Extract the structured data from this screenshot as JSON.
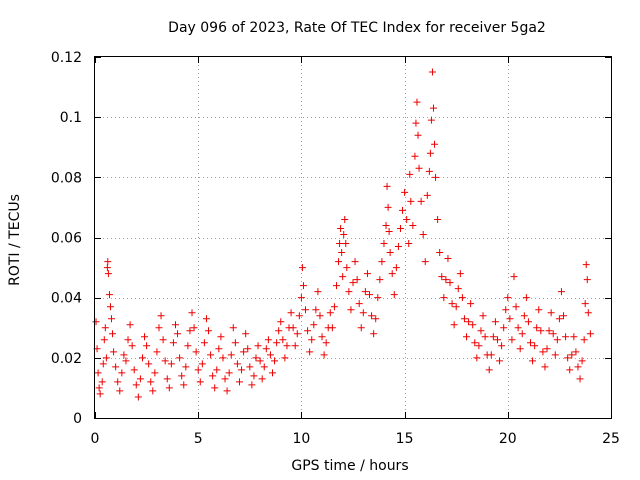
{
  "chart_data": {
    "type": "scatter",
    "title": "Day 096 of 2023, Rate Of TEC Index for receiver 5ga2",
    "xlabel": "GPS time / hours",
    "ylabel": "ROTI / TECUs",
    "xlim": [
      0,
      25
    ],
    "ylim": [
      0,
      0.12
    ],
    "xticks": [
      0,
      5,
      10,
      15,
      20,
      25
    ],
    "xtick_labels": [
      "0",
      "5",
      "10",
      "15",
      "20",
      "25"
    ],
    "yticks": [
      0,
      0.02,
      0.04,
      0.06,
      0.08,
      0.1,
      0.12
    ],
    "ytick_labels": [
      "0",
      "0.02",
      "0.04",
      "0.06",
      "0.08",
      "0.1",
      "0.12"
    ],
    "grid": true,
    "marker": "plus",
    "color": "#ee0000",
    "series": [
      {
        "name": "ROTI",
        "points": [
          [
            0.05,
            0.032
          ],
          [
            0.1,
            0.023
          ],
          [
            0.15,
            0.015
          ],
          [
            0.2,
            0.01
          ],
          [
            0.25,
            0.008
          ],
          [
            0.35,
            0.012
          ],
          [
            0.4,
            0.018
          ],
          [
            0.45,
            0.026
          ],
          [
            0.5,
            0.03
          ],
          [
            0.55,
            0.02
          ],
          [
            0.6,
            0.05
          ],
          [
            0.62,
            0.052
          ],
          [
            0.65,
            0.048
          ],
          [
            0.7,
            0.041
          ],
          [
            0.75,
            0.037
          ],
          [
            0.8,
            0.033
          ],
          [
            0.85,
            0.028
          ],
          [
            0.9,
            0.022
          ],
          [
            1.0,
            0.017
          ],
          [
            1.1,
            0.012
          ],
          [
            1.2,
            0.009
          ],
          [
            1.3,
            0.015
          ],
          [
            1.4,
            0.021
          ],
          [
            1.5,
            0.019
          ],
          [
            1.6,
            0.026
          ],
          [
            1.7,
            0.031
          ],
          [
            1.8,
            0.024
          ],
          [
            1.9,
            0.016
          ],
          [
            2.0,
            0.011
          ],
          [
            2.1,
            0.007
          ],
          [
            2.2,
            0.013
          ],
          [
            2.3,
            0.02
          ],
          [
            2.4,
            0.027
          ],
          [
            2.5,
            0.024
          ],
          [
            2.6,
            0.018
          ],
          [
            2.7,
            0.012
          ],
          [
            2.8,
            0.009
          ],
          [
            2.9,
            0.015
          ],
          [
            3.0,
            0.022
          ],
          [
            3.1,
            0.03
          ],
          [
            3.2,
            0.034
          ],
          [
            3.3,
            0.026
          ],
          [
            3.4,
            0.019
          ],
          [
            3.5,
            0.013
          ],
          [
            3.6,
            0.01
          ],
          [
            3.7,
            0.018
          ],
          [
            3.8,
            0.025
          ],
          [
            3.9,
            0.031
          ],
          [
            4.0,
            0.028
          ],
          [
            4.1,
            0.02
          ],
          [
            4.2,
            0.014
          ],
          [
            4.3,
            0.011
          ],
          [
            4.4,
            0.017
          ],
          [
            4.5,
            0.024
          ],
          [
            4.6,
            0.029
          ],
          [
            4.7,
            0.035
          ],
          [
            4.8,
            0.03
          ],
          [
            4.9,
            0.022
          ],
          [
            5.0,
            0.016
          ],
          [
            5.1,
            0.012
          ],
          [
            5.2,
            0.018
          ],
          [
            5.3,
            0.025
          ],
          [
            5.4,
            0.033
          ],
          [
            5.5,
            0.029
          ],
          [
            5.6,
            0.021
          ],
          [
            5.7,
            0.014
          ],
          [
            5.8,
            0.01
          ],
          [
            5.9,
            0.016
          ],
          [
            6.0,
            0.023
          ],
          [
            6.1,
            0.027
          ],
          [
            6.2,
            0.02
          ],
          [
            6.3,
            0.013
          ],
          [
            6.4,
            0.009
          ],
          [
            6.5,
            0.015
          ],
          [
            6.6,
            0.021
          ],
          [
            6.7,
            0.03
          ],
          [
            6.8,
            0.025
          ],
          [
            6.9,
            0.018
          ],
          [
            7.0,
            0.012
          ],
          [
            7.1,
            0.016
          ],
          [
            7.2,
            0.022
          ],
          [
            7.3,
            0.028
          ],
          [
            7.4,
            0.023
          ],
          [
            7.5,
            0.017
          ],
          [
            7.6,
            0.011
          ],
          [
            7.7,
            0.014
          ],
          [
            7.8,
            0.02
          ],
          [
            7.9,
            0.024
          ],
          [
            8.0,
            0.019
          ],
          [
            8.1,
            0.013
          ],
          [
            8.2,
            0.017
          ],
          [
            8.3,
            0.023
          ],
          [
            8.4,
            0.026
          ],
          [
            8.5,
            0.021
          ],
          [
            8.6,
            0.015
          ],
          [
            8.7,
            0.019
          ],
          [
            8.8,
            0.025
          ],
          [
            8.9,
            0.029
          ],
          [
            9.0,
            0.032
          ],
          [
            9.1,
            0.026
          ],
          [
            9.2,
            0.02
          ],
          [
            9.3,
            0.024
          ],
          [
            9.4,
            0.03
          ],
          [
            9.5,
            0.035
          ],
          [
            9.6,
            0.03
          ],
          [
            9.7,
            0.024
          ],
          [
            9.8,
            0.028
          ],
          [
            9.9,
            0.034
          ],
          [
            10.0,
            0.04
          ],
          [
            10.05,
            0.05
          ],
          [
            10.1,
            0.044
          ],
          [
            10.2,
            0.036
          ],
          [
            10.3,
            0.029
          ],
          [
            10.4,
            0.022
          ],
          [
            10.5,
            0.026
          ],
          [
            10.6,
            0.031
          ],
          [
            10.7,
            0.036
          ],
          [
            10.8,
            0.042
          ],
          [
            10.9,
            0.034
          ],
          [
            11.0,
            0.027
          ],
          [
            11.1,
            0.021
          ],
          [
            11.2,
            0.025
          ],
          [
            11.3,
            0.03
          ],
          [
            11.4,
            0.035
          ],
          [
            11.5,
            0.03
          ],
          [
            11.6,
            0.037
          ],
          [
            11.7,
            0.044
          ],
          [
            11.8,
            0.052
          ],
          [
            11.85,
            0.058
          ],
          [
            11.9,
            0.063
          ],
          [
            11.95,
            0.055
          ],
          [
            12.0,
            0.047
          ],
          [
            12.05,
            0.061
          ],
          [
            12.1,
            0.066
          ],
          [
            12.15,
            0.058
          ],
          [
            12.2,
            0.05
          ],
          [
            12.3,
            0.042
          ],
          [
            12.4,
            0.036
          ],
          [
            12.5,
            0.045
          ],
          [
            12.6,
            0.052
          ],
          [
            12.7,
            0.046
          ],
          [
            12.8,
            0.038
          ],
          [
            12.9,
            0.03
          ],
          [
            13.0,
            0.035
          ],
          [
            13.1,
            0.042
          ],
          [
            13.2,
            0.048
          ],
          [
            13.3,
            0.041
          ],
          [
            13.4,
            0.034
          ],
          [
            13.5,
            0.028
          ],
          [
            13.6,
            0.033
          ],
          [
            13.7,
            0.04
          ],
          [
            13.8,
            0.046
          ],
          [
            13.9,
            0.052
          ],
          [
            14.0,
            0.058
          ],
          [
            14.1,
            0.064
          ],
          [
            14.15,
            0.077
          ],
          [
            14.2,
            0.07
          ],
          [
            14.25,
            0.062
          ],
          [
            14.3,
            0.055
          ],
          [
            14.4,
            0.048
          ],
          [
            14.5,
            0.041
          ],
          [
            14.6,
            0.05
          ],
          [
            14.7,
            0.057
          ],
          [
            14.8,
            0.063
          ],
          [
            14.9,
            0.069
          ],
          [
            15.0,
            0.075
          ],
          [
            15.1,
            0.066
          ],
          [
            15.2,
            0.058
          ],
          [
            15.25,
            0.081
          ],
          [
            15.3,
            0.072
          ],
          [
            15.4,
            0.064
          ],
          [
            15.5,
            0.087
          ],
          [
            15.55,
            0.098
          ],
          [
            15.6,
            0.105
          ],
          [
            15.65,
            0.094
          ],
          [
            15.7,
            0.083
          ],
          [
            15.8,
            0.072
          ],
          [
            15.9,
            0.061
          ],
          [
            16.0,
            0.052
          ],
          [
            16.1,
            0.074
          ],
          [
            16.2,
            0.082
          ],
          [
            16.25,
            0.088
          ],
          [
            16.3,
            0.099
          ],
          [
            16.35,
            0.115
          ],
          [
            16.4,
            0.103
          ],
          [
            16.45,
            0.091
          ],
          [
            16.5,
            0.08
          ],
          [
            16.6,
            0.066
          ],
          [
            16.7,
            0.055
          ],
          [
            16.8,
            0.047
          ],
          [
            16.9,
            0.04
          ],
          [
            17.0,
            0.046
          ],
          [
            17.1,
            0.053
          ],
          [
            17.2,
            0.045
          ],
          [
            17.3,
            0.038
          ],
          [
            17.4,
            0.031
          ],
          [
            17.5,
            0.037
          ],
          [
            17.6,
            0.043
          ],
          [
            17.7,
            0.048
          ],
          [
            17.8,
            0.04
          ],
          [
            17.9,
            0.033
          ],
          [
            18.0,
            0.027
          ],
          [
            18.1,
            0.032
          ],
          [
            18.2,
            0.038
          ],
          [
            18.3,
            0.031
          ],
          [
            18.4,
            0.025
          ],
          [
            18.5,
            0.02
          ],
          [
            18.6,
            0.024
          ],
          [
            18.7,
            0.029
          ],
          [
            18.8,
            0.034
          ],
          [
            18.9,
            0.027
          ],
          [
            19.0,
            0.021
          ],
          [
            19.1,
            0.016
          ],
          [
            19.2,
            0.021
          ],
          [
            19.3,
            0.027
          ],
          [
            19.4,
            0.032
          ],
          [
            19.5,
            0.026
          ],
          [
            19.6,
            0.019
          ],
          [
            19.7,
            0.024
          ],
          [
            19.8,
            0.03
          ],
          [
            19.9,
            0.036
          ],
          [
            20.0,
            0.04
          ],
          [
            20.1,
            0.033
          ],
          [
            20.2,
            0.026
          ],
          [
            20.3,
            0.047
          ],
          [
            20.4,
            0.037
          ],
          [
            20.5,
            0.03
          ],
          [
            20.6,
            0.023
          ],
          [
            20.7,
            0.028
          ],
          [
            20.8,
            0.034
          ],
          [
            20.9,
            0.04
          ],
          [
            21.0,
            0.032
          ],
          [
            21.1,
            0.025
          ],
          [
            21.2,
            0.019
          ],
          [
            21.3,
            0.024
          ],
          [
            21.4,
            0.03
          ],
          [
            21.5,
            0.036
          ],
          [
            21.6,
            0.029
          ],
          [
            21.7,
            0.022
          ],
          [
            21.8,
            0.017
          ],
          [
            21.9,
            0.023
          ],
          [
            22.0,
            0.029
          ],
          [
            22.1,
            0.035
          ],
          [
            22.2,
            0.028
          ],
          [
            22.3,
            0.021
          ],
          [
            22.4,
            0.026
          ],
          [
            22.5,
            0.033
          ],
          [
            22.6,
            0.042
          ],
          [
            22.7,
            0.034
          ],
          [
            22.8,
            0.027
          ],
          [
            22.9,
            0.02
          ],
          [
            23.0,
            0.016
          ],
          [
            23.1,
            0.021
          ],
          [
            23.2,
            0.027
          ],
          [
            23.3,
            0.022
          ],
          [
            23.4,
            0.017
          ],
          [
            23.5,
            0.013
          ],
          [
            23.6,
            0.019
          ],
          [
            23.7,
            0.026
          ],
          [
            23.75,
            0.038
          ],
          [
            23.8,
            0.051
          ],
          [
            23.85,
            0.046
          ],
          [
            23.9,
            0.035
          ],
          [
            24.0,
            0.028
          ]
        ]
      }
    ]
  }
}
